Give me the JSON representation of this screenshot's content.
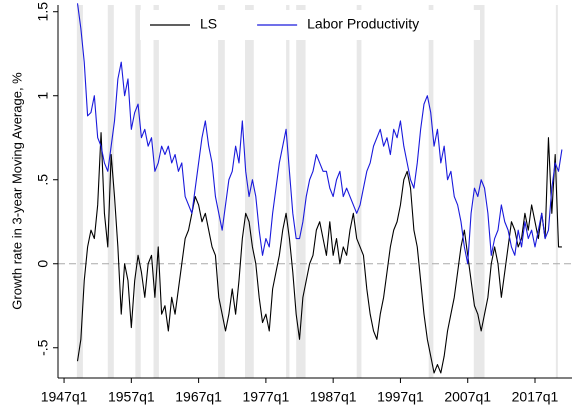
{
  "chart_data": {
    "type": "line",
    "y_label": "Growth rate in 3-year Moving Average, %",
    "x": [
      1949.0,
      1949.5,
      1950.0,
      1950.5,
      1951.0,
      1951.5,
      1952.0,
      1952.5,
      1953.0,
      1953.5,
      1954.0,
      1954.5,
      1955.0,
      1955.5,
      1956.0,
      1956.5,
      1957.0,
      1957.5,
      1958.0,
      1958.5,
      1959.0,
      1959.5,
      1960.0,
      1960.5,
      1961.0,
      1961.5,
      1962.0,
      1962.5,
      1963.0,
      1963.5,
      1964.0,
      1964.5,
      1965.0,
      1965.5,
      1966.0,
      1966.5,
      1967.0,
      1967.5,
      1968.0,
      1968.5,
      1969.0,
      1969.5,
      1970.0,
      1970.5,
      1971.0,
      1971.5,
      1972.0,
      1972.5,
      1973.0,
      1973.5,
      1974.0,
      1974.5,
      1975.0,
      1975.5,
      1976.0,
      1976.5,
      1977.0,
      1977.5,
      1978.0,
      1978.5,
      1979.0,
      1979.5,
      1980.0,
      1980.5,
      1981.0,
      1981.5,
      1982.0,
      1982.5,
      1983.0,
      1983.5,
      1984.0,
      1984.5,
      1985.0,
      1985.5,
      1986.0,
      1986.5,
      1987.0,
      1987.5,
      1988.0,
      1988.5,
      1989.0,
      1989.5,
      1990.0,
      1990.5,
      1991.0,
      1991.5,
      1992.0,
      1992.5,
      1993.0,
      1993.5,
      1994.0,
      1994.5,
      1995.0,
      1995.5,
      1996.0,
      1996.5,
      1997.0,
      1997.5,
      1998.0,
      1998.5,
      1999.0,
      1999.5,
      2000.0,
      2000.5,
      2001.0,
      2001.5,
      2002.0,
      2002.5,
      2003.0,
      2003.5,
      2004.0,
      2004.5,
      2005.0,
      2005.5,
      2006.0,
      2006.5,
      2007.0,
      2007.5,
      2008.0,
      2008.5,
      2009.0,
      2009.5,
      2010.0,
      2010.5,
      2011.0,
      2011.5,
      2012.0,
      2012.5,
      2013.0,
      2013.5,
      2014.0,
      2014.5,
      2015.0,
      2015.5,
      2016.0,
      2016.5,
      2017.0,
      2017.5,
      2018.0,
      2018.5,
      2019.0,
      2019.5,
      2020.0,
      2020.5,
      2021.0
    ],
    "series": [
      {
        "name": "LS",
        "color": "#000000",
        "values": [
          -0.58,
          -0.45,
          -0.1,
          0.1,
          0.2,
          0.15,
          0.35,
          0.78,
          0.3,
          0.1,
          0.65,
          0.4,
          0.1,
          -0.3,
          0.0,
          -0.1,
          -0.38,
          -0.1,
          0.05,
          -0.05,
          -0.2,
          0.0,
          0.05,
          -0.2,
          0.1,
          -0.3,
          -0.25,
          -0.4,
          -0.2,
          -0.3,
          -0.15,
          0.0,
          0.15,
          0.2,
          0.3,
          0.4,
          0.35,
          0.25,
          0.3,
          0.2,
          0.1,
          0.05,
          -0.2,
          -0.3,
          -0.4,
          -0.3,
          -0.15,
          -0.3,
          -0.1,
          0.15,
          0.3,
          0.25,
          0.1,
          0.0,
          -0.2,
          -0.35,
          -0.3,
          -0.4,
          -0.15,
          -0.05,
          0.05,
          0.2,
          0.3,
          0.15,
          -0.05,
          -0.3,
          -0.45,
          -0.2,
          -0.1,
          0.0,
          0.05,
          0.2,
          0.25,
          0.15,
          0.05,
          0.25,
          0.05,
          0.15,
          0.0,
          0.1,
          0.05,
          0.2,
          0.3,
          0.15,
          0.1,
          0.05,
          -0.15,
          -0.3,
          -0.4,
          -0.45,
          -0.3,
          -0.2,
          -0.05,
          0.1,
          0.2,
          0.25,
          0.35,
          0.5,
          0.55,
          0.45,
          0.2,
          0.1,
          -0.1,
          -0.3,
          -0.45,
          -0.55,
          -0.65,
          -0.6,
          -0.65,
          -0.55,
          -0.4,
          -0.3,
          -0.2,
          -0.05,
          0.1,
          0.2,
          0.05,
          -0.1,
          -0.25,
          -0.3,
          -0.4,
          -0.3,
          -0.2,
          0.0,
          0.1,
          0.0,
          -0.2,
          -0.05,
          0.1,
          0.25,
          0.2,
          0.1,
          0.15,
          0.3,
          0.2,
          0.35,
          0.25,
          0.15,
          0.3,
          0.15,
          0.75,
          0.3,
          0.65,
          0.1,
          0.1
        ]
      },
      {
        "name": "Labor Productivity",
        "color": "#1a1adc",
        "values": [
          1.55,
          1.4,
          1.2,
          0.88,
          0.9,
          1.0,
          0.75,
          0.7,
          0.6,
          0.55,
          0.7,
          0.85,
          1.1,
          1.2,
          1.0,
          1.1,
          0.8,
          0.9,
          0.95,
          0.75,
          0.8,
          0.7,
          0.75,
          0.55,
          0.6,
          0.7,
          0.65,
          0.7,
          0.6,
          0.65,
          0.55,
          0.6,
          0.4,
          0.35,
          0.3,
          0.45,
          0.6,
          0.75,
          0.85,
          0.7,
          0.6,
          0.4,
          0.3,
          0.2,
          0.35,
          0.5,
          0.55,
          0.7,
          0.6,
          0.85,
          0.55,
          0.4,
          0.5,
          0.4,
          0.2,
          0.05,
          0.15,
          0.1,
          0.3,
          0.45,
          0.6,
          0.7,
          0.8,
          0.55,
          0.3,
          0.15,
          0.15,
          0.25,
          0.4,
          0.5,
          0.55,
          0.65,
          0.6,
          0.55,
          0.55,
          0.45,
          0.4,
          0.5,
          0.55,
          0.4,
          0.45,
          0.4,
          0.35,
          0.3,
          0.35,
          0.45,
          0.55,
          0.6,
          0.7,
          0.75,
          0.8,
          0.7,
          0.75,
          0.65,
          0.8,
          0.75,
          0.85,
          0.7,
          0.6,
          0.5,
          0.45,
          0.6,
          0.8,
          0.95,
          1.0,
          0.9,
          0.7,
          0.8,
          0.6,
          0.7,
          0.5,
          0.55,
          0.4,
          0.35,
          0.25,
          0.1,
          0.0,
          0.3,
          0.45,
          0.4,
          0.5,
          0.45,
          0.3,
          0.05,
          0.15,
          0.2,
          0.35,
          0.25,
          0.2,
          0.1,
          0.05,
          0.2,
          0.1,
          0.25,
          0.15,
          0.2,
          0.1,
          0.2,
          0.3,
          0.15,
          0.2,
          0.45,
          0.6,
          0.55,
          0.68
        ]
      }
    ],
    "shaded_periods": [
      [
        1948.9,
        1949.8
      ],
      [
        1953.5,
        1954.4
      ],
      [
        1957.6,
        1958.4
      ],
      [
        1960.3,
        1961.1
      ],
      [
        1969.9,
        1970.9
      ],
      [
        1973.9,
        1975.2
      ],
      [
        1980.0,
        1980.5
      ],
      [
        1981.5,
        1982.9
      ],
      [
        1990.5,
        1991.2
      ],
      [
        2001.2,
        2001.9
      ],
      [
        2007.9,
        2009.5
      ],
      [
        2020.1,
        2020.4
      ]
    ],
    "shade_color": "#e8e8e8",
    "reference_line": 0,
    "xlim": [
      1946.1,
      2022.5
    ],
    "ylim": [
      -0.68,
      1.54
    ],
    "xticks": [
      {
        "value": 1947,
        "label": "1947q1"
      },
      {
        "value": 1957,
        "label": "1957q1"
      },
      {
        "value": 1967,
        "label": "1967q1"
      },
      {
        "value": 1977,
        "label": "1977q1"
      },
      {
        "value": 1987,
        "label": "1987q1"
      },
      {
        "value": 1997,
        "label": "1997q1"
      },
      {
        "value": 2007,
        "label": "2007q1"
      },
      {
        "value": 2017,
        "label": "2017q1"
      }
    ],
    "yticks": [
      {
        "value": -0.5,
        "label": "-.5"
      },
      0,
      {
        "value": 0.5,
        "label": ".5"
      },
      1,
      1.5
    ],
    "grid": false,
    "legend": "top"
  }
}
